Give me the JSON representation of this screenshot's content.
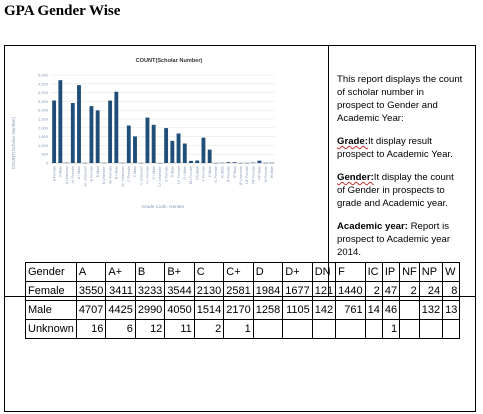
{
  "page": {
    "title": "GPA Gender Wise"
  },
  "report": {
    "intro": "This report displays the count of scholar number in prospect to Gender and Academic Year:",
    "grade_label": "Grade:",
    "grade_text": "It display result prospect to Academic Year.",
    "gender_label": "Gender:",
    "gender_text": "It display the count of Gender in prospects to grade and Academic year.",
    "year_label": "Academic year:",
    "year_text": "Report is prospect to Academic year 2014."
  },
  "chart_data": {
    "type": "bar",
    "title": "COUNT(Scholar Number)",
    "xlabel": "Grade Code, Gender",
    "ylabel": "COUNT(Scholar Number)",
    "ylim": [
      0,
      5000
    ],
    "yticks": [
      "0",
      "500",
      "1,000",
      "1,500",
      "2,000",
      "2,500",
      "3,000",
      "3,500",
      "4,000",
      "4,500",
      "5,000"
    ],
    "grid": true,
    "categories": [
      "A Female",
      "A Male",
      "A Unknown",
      "A+ Female",
      "A+ Male",
      "A+ Unknown",
      "B Female",
      "B Male",
      "B Unknown",
      "B+ Female",
      "B+ Male",
      "B+ Unknown",
      "C Female",
      "C Male",
      "C Unknown",
      "C+ Female",
      "C+ Male",
      "C+ Unknown",
      "D Female",
      "D Male",
      "D+ Female",
      "D+ Male",
      "DN Female",
      "DN Male",
      "F Female",
      "F Male",
      "IC Female",
      "IC Male",
      "IP Female",
      "IP Male",
      "IP Unknown",
      "NF Female",
      "NP Female",
      "NP Male",
      "W Female",
      "W Male"
    ],
    "values": [
      3550,
      4707,
      16,
      3411,
      4425,
      6,
      3233,
      2990,
      12,
      3544,
      4050,
      11,
      2130,
      1514,
      2,
      2581,
      2170,
      1,
      1984,
      1258,
      1677,
      1105,
      121,
      142,
      1440,
      761,
      2,
      14,
      47,
      46,
      1,
      2,
      24,
      132,
      8,
      13
    ],
    "bar_color": "#1f4e79"
  },
  "table": {
    "headers": [
      "Gender",
      "A",
      "A+",
      "B",
      "B+",
      "C",
      "C+",
      "D",
      "D+",
      "DN",
      "F",
      "IC",
      "IP",
      "NF",
      "NP",
      "W"
    ],
    "rows": [
      [
        "Female",
        "3550",
        "3411",
        "3233",
        "3544",
        "2130",
        "2581",
        "1984",
        "1677",
        "121",
        "1440",
        "2",
        "47",
        "2",
        "24",
        "8"
      ],
      [
        "Male",
        "4707",
        "4425",
        "2990",
        "4050",
        "1514",
        "2170",
        "1258",
        "1105",
        "142",
        "761",
        "14",
        "46",
        "",
        "132",
        "13"
      ],
      [
        "Unknown",
        "16",
        "6",
        "12",
        "11",
        "2",
        "1",
        "",
        "",
        "",
        "",
        "",
        "1",
        "",
        "",
        ""
      ]
    ]
  }
}
